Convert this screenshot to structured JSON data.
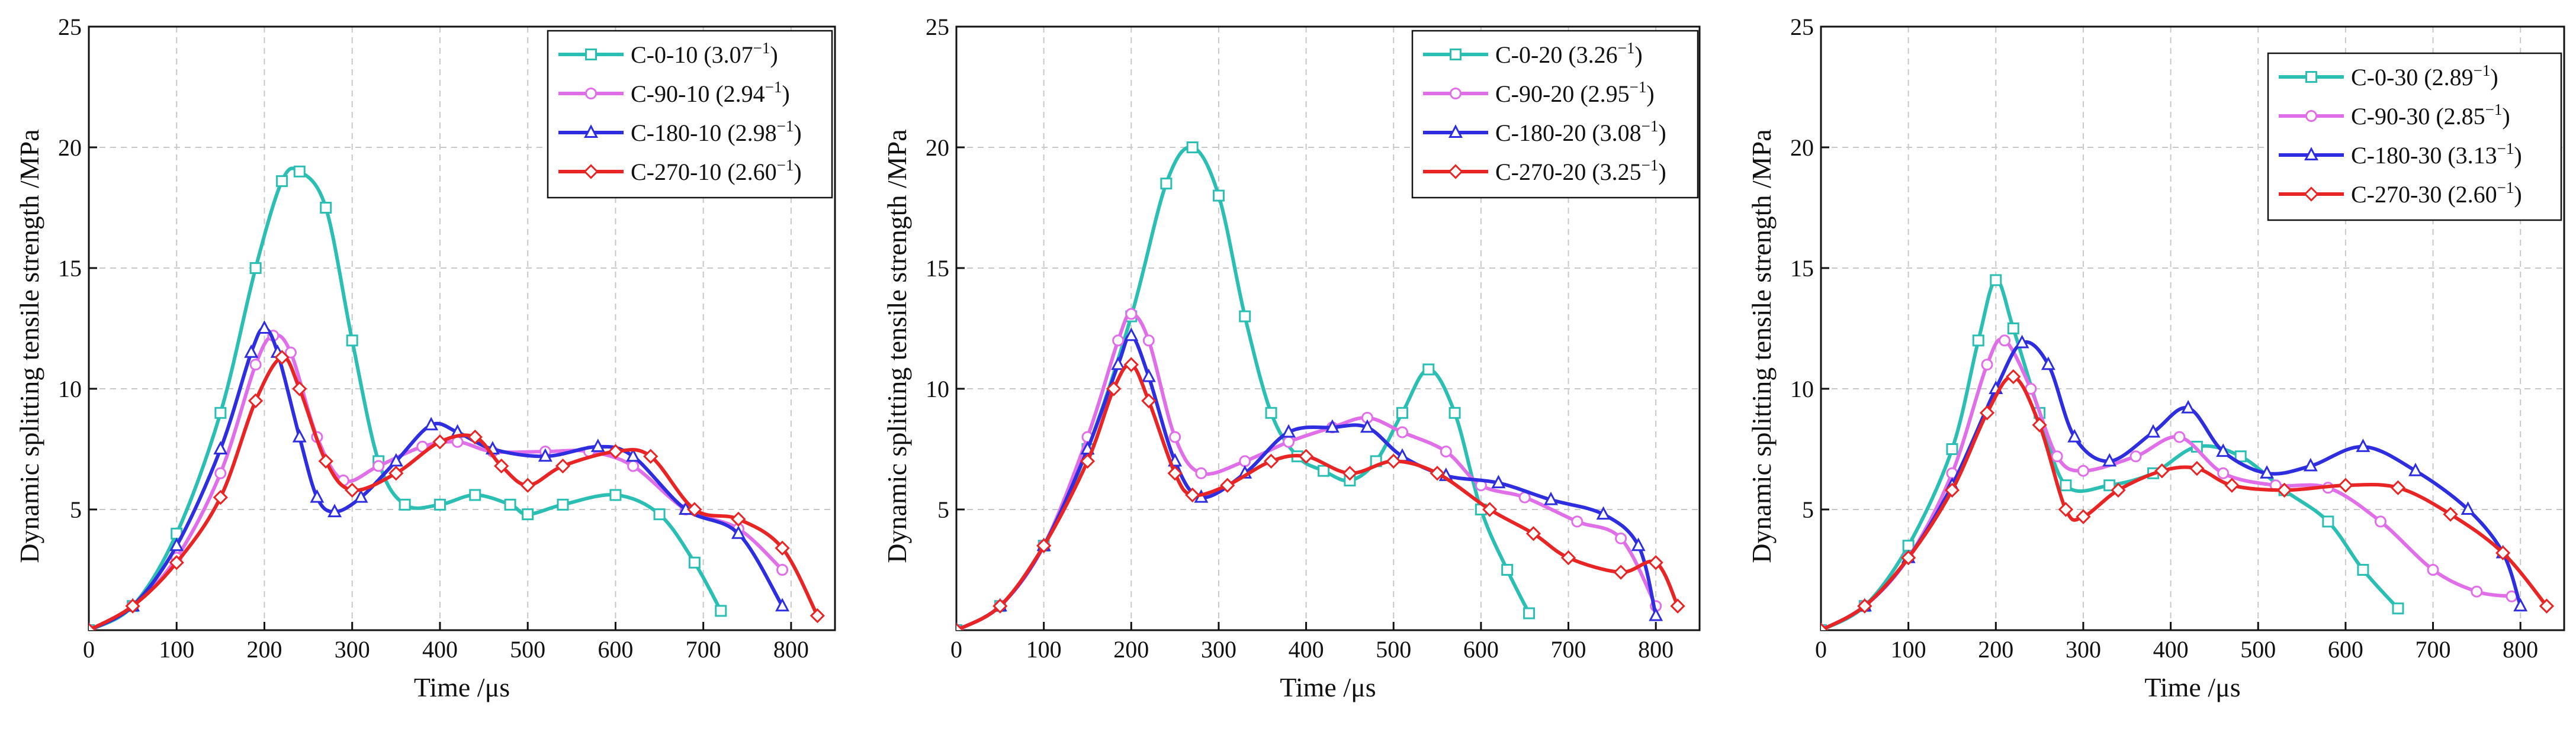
{
  "chart_data": [
    {
      "type": "line",
      "xlabel": "Time /μs",
      "ylabel": "Dynamic splitting tensile strength /MPa",
      "xlim": [
        0,
        850
      ],
      "ylim": [
        0,
        25
      ],
      "xticks": [
        0,
        100,
        200,
        300,
        400,
        500,
        600,
        700,
        800
      ],
      "yticks": [
        5,
        10,
        15,
        20,
        25
      ],
      "grid": true,
      "legend_position": "top-right",
      "series": [
        {
          "name": "C-0-10",
          "rate_base": "3.07",
          "exponent": "−1",
          "color": "#2bbfb3",
          "marker": "square",
          "points": [
            [
              0,
              0
            ],
            [
              50,
              1
            ],
            [
              100,
              4
            ],
            [
              150,
              9
            ],
            [
              190,
              15
            ],
            [
              220,
              18.6
            ],
            [
              240,
              19
            ],
            [
              270,
              17.5
            ],
            [
              300,
              12
            ],
            [
              330,
              7
            ],
            [
              360,
              5.2
            ],
            [
              400,
              5.2
            ],
            [
              440,
              5.6
            ],
            [
              480,
              5.2
            ],
            [
              500,
              4.8
            ],
            [
              540,
              5.2
            ],
            [
              600,
              5.6
            ],
            [
              650,
              4.8
            ],
            [
              690,
              2.8
            ],
            [
              720,
              0.8
            ]
          ]
        },
        {
          "name": "C-90-10",
          "rate_base": "2.94",
          "exponent": "−1",
          "color": "#e06ee8",
          "marker": "circle",
          "points": [
            [
              0,
              0
            ],
            [
              50,
              1
            ],
            [
              100,
              3
            ],
            [
              150,
              6.5
            ],
            [
              190,
              11
            ],
            [
              210,
              12.2
            ],
            [
              230,
              11.5
            ],
            [
              260,
              8
            ],
            [
              290,
              6.2
            ],
            [
              330,
              6.8
            ],
            [
              380,
              7.6
            ],
            [
              420,
              7.8
            ],
            [
              460,
              7.4
            ],
            [
              520,
              7.4
            ],
            [
              570,
              7.4
            ],
            [
              620,
              6.8
            ],
            [
              680,
              5
            ],
            [
              740,
              4.2
            ],
            [
              790,
              2.5
            ]
          ]
        },
        {
          "name": "C-180-10",
          "rate_base": "2.98",
          "exponent": "−1",
          "color": "#2e2ee0",
          "marker": "triangle",
          "points": [
            [
              0,
              0
            ],
            [
              50,
              1
            ],
            [
              100,
              3.5
            ],
            [
              150,
              7.5
            ],
            [
              185,
              11.5
            ],
            [
              200,
              12.5
            ],
            [
              215,
              11.5
            ],
            [
              240,
              8
            ],
            [
              260,
              5.5
            ],
            [
              280,
              4.9
            ],
            [
              310,
              5.5
            ],
            [
              350,
              7
            ],
            [
              390,
              8.5
            ],
            [
              420,
              8.2
            ],
            [
              460,
              7.5
            ],
            [
              520,
              7.2
            ],
            [
              580,
              7.6
            ],
            [
              620,
              7.2
            ],
            [
              680,
              5
            ],
            [
              740,
              4
            ],
            [
              790,
              1
            ]
          ]
        },
        {
          "name": "C-270-10",
          "rate_base": "2.60",
          "exponent": "−1",
          "color": "#e82424",
          "marker": "diamond",
          "points": [
            [
              0,
              0
            ],
            [
              50,
              1
            ],
            [
              100,
              2.8
            ],
            [
              150,
              5.5
            ],
            [
              190,
              9.5
            ],
            [
              220,
              11.3
            ],
            [
              240,
              10
            ],
            [
              270,
              7
            ],
            [
              300,
              5.8
            ],
            [
              350,
              6.5
            ],
            [
              400,
              7.8
            ],
            [
              440,
              8
            ],
            [
              470,
              6.8
            ],
            [
              500,
              6
            ],
            [
              540,
              6.8
            ],
            [
              600,
              7.4
            ],
            [
              640,
              7.2
            ],
            [
              690,
              5
            ],
            [
              740,
              4.6
            ],
            [
              790,
              3.4
            ],
            [
              830,
              0.6
            ]
          ]
        }
      ]
    },
    {
      "type": "line",
      "xlabel": "Time /μs",
      "ylabel": "Dynamic splitting tensile strength /MPa",
      "xlim": [
        0,
        850
      ],
      "ylim": [
        0,
        25
      ],
      "xticks": [
        0,
        100,
        200,
        300,
        400,
        500,
        600,
        700,
        800
      ],
      "yticks": [
        5,
        10,
        15,
        20,
        25
      ],
      "grid": true,
      "legend_position": "top-right",
      "series": [
        {
          "name": "C-0-20",
          "rate_base": "3.26",
          "exponent": "−1",
          "color": "#2bbfb3",
          "marker": "square",
          "points": [
            [
              0,
              0
            ],
            [
              50,
              1
            ],
            [
              100,
              3.5
            ],
            [
              150,
              7.5
            ],
            [
              200,
              13
            ],
            [
              240,
              18.5
            ],
            [
              270,
              20
            ],
            [
              300,
              18
            ],
            [
              330,
              13
            ],
            [
              360,
              9
            ],
            [
              390,
              7.2
            ],
            [
              420,
              6.6
            ],
            [
              450,
              6.2
            ],
            [
              480,
              7
            ],
            [
              510,
              9
            ],
            [
              540,
              10.8
            ],
            [
              570,
              9
            ],
            [
              600,
              5
            ],
            [
              630,
              2.5
            ],
            [
              655,
              0.7
            ]
          ]
        },
        {
          "name": "C-90-20",
          "rate_base": "2.95",
          "exponent": "−1",
          "color": "#e06ee8",
          "marker": "circle",
          "points": [
            [
              0,
              0
            ],
            [
              50,
              1
            ],
            [
              100,
              3.5
            ],
            [
              150,
              8
            ],
            [
              185,
              12
            ],
            [
              200,
              13.1
            ],
            [
              220,
              12
            ],
            [
              250,
              8
            ],
            [
              280,
              6.5
            ],
            [
              330,
              7
            ],
            [
              380,
              7.8
            ],
            [
              430,
              8.4
            ],
            [
              470,
              8.8
            ],
            [
              510,
              8.2
            ],
            [
              560,
              7.4
            ],
            [
              600,
              6
            ],
            [
              650,
              5.5
            ],
            [
              710,
              4.5
            ],
            [
              760,
              3.8
            ],
            [
              800,
              1
            ]
          ]
        },
        {
          "name": "C-180-20",
          "rate_base": "3.08",
          "exponent": "−1",
          "color": "#2e2ee0",
          "marker": "triangle",
          "points": [
            [
              0,
              0
            ],
            [
              50,
              1
            ],
            [
              100,
              3.5
            ],
            [
              150,
              7.5
            ],
            [
              185,
              11
            ],
            [
              200,
              12.2
            ],
            [
              220,
              10.5
            ],
            [
              250,
              7
            ],
            [
              280,
              5.5
            ],
            [
              330,
              6.5
            ],
            [
              380,
              8.2
            ],
            [
              430,
              8.4
            ],
            [
              470,
              8.4
            ],
            [
              510,
              7.2
            ],
            [
              560,
              6.4
            ],
            [
              620,
              6.1
            ],
            [
              680,
              5.4
            ],
            [
              740,
              4.8
            ],
            [
              780,
              3.5
            ],
            [
              800,
              0.6
            ]
          ]
        },
        {
          "name": "C-270-20",
          "rate_base": "3.25",
          "exponent": "−1",
          "color": "#e82424",
          "marker": "diamond",
          "points": [
            [
              0,
              0
            ],
            [
              50,
              1
            ],
            [
              100,
              3.5
            ],
            [
              150,
              7
            ],
            [
              180,
              10
            ],
            [
              200,
              11
            ],
            [
              220,
              9.5
            ],
            [
              250,
              6.5
            ],
            [
              270,
              5.6
            ],
            [
              310,
              6
            ],
            [
              360,
              7
            ],
            [
              400,
              7.2
            ],
            [
              450,
              6.5
            ],
            [
              500,
              7
            ],
            [
              550,
              6.5
            ],
            [
              610,
              5
            ],
            [
              660,
              4
            ],
            [
              700,
              3
            ],
            [
              760,
              2.4
            ],
            [
              800,
              2.8
            ],
            [
              825,
              1
            ]
          ]
        }
      ]
    },
    {
      "type": "line",
      "xlabel": "Time /μs",
      "ylabel": "Dynamic splitting tensile strength /MPa",
      "xlim": [
        0,
        850
      ],
      "ylim": [
        0,
        25
      ],
      "xticks": [
        0,
        100,
        200,
        300,
        400,
        500,
        600,
        700,
        800
      ],
      "yticks": [
        5,
        10,
        15,
        20,
        25
      ],
      "grid": true,
      "legend_position": "top-right",
      "series": [
        {
          "name": "C-0-30",
          "rate_base": "2.89",
          "exponent": "−1",
          "color": "#2bbfb3",
          "marker": "square",
          "points": [
            [
              0,
              0
            ],
            [
              50,
              1
            ],
            [
              100,
              3.5
            ],
            [
              150,
              7.5
            ],
            [
              180,
              12
            ],
            [
              200,
              14.5
            ],
            [
              220,
              12.5
            ],
            [
              250,
              9
            ],
            [
              280,
              6
            ],
            [
              330,
              6
            ],
            [
              380,
              6.5
            ],
            [
              430,
              7.6
            ],
            [
              480,
              7.2
            ],
            [
              530,
              5.8
            ],
            [
              580,
              4.5
            ],
            [
              620,
              2.5
            ],
            [
              660,
              0.9
            ]
          ]
        },
        {
          "name": "C-90-30",
          "rate_base": "2.85",
          "exponent": "−1",
          "color": "#e06ee8",
          "marker": "circle",
          "points": [
            [
              0,
              0
            ],
            [
              50,
              1
            ],
            [
              100,
              3
            ],
            [
              150,
              6.5
            ],
            [
              190,
              11
            ],
            [
              210,
              12
            ],
            [
              240,
              10
            ],
            [
              270,
              7.2
            ],
            [
              300,
              6.6
            ],
            [
              360,
              7.2
            ],
            [
              410,
              8
            ],
            [
              460,
              6.5
            ],
            [
              520,
              6
            ],
            [
              580,
              5.9
            ],
            [
              640,
              4.5
            ],
            [
              700,
              2.5
            ],
            [
              750,
              1.6
            ],
            [
              790,
              1.4
            ]
          ]
        },
        {
          "name": "C-180-30",
          "rate_base": "3.13",
          "exponent": "−1",
          "color": "#2e2ee0",
          "marker": "triangle",
          "points": [
            [
              0,
              0
            ],
            [
              50,
              1
            ],
            [
              100,
              3
            ],
            [
              150,
              6
            ],
            [
              200,
              10
            ],
            [
              230,
              11.9
            ],
            [
              260,
              11
            ],
            [
              290,
              8
            ],
            [
              330,
              7
            ],
            [
              380,
              8.2
            ],
            [
              420,
              9.2
            ],
            [
              460,
              7.4
            ],
            [
              510,
              6.5
            ],
            [
              560,
              6.8
            ],
            [
              620,
              7.6
            ],
            [
              680,
              6.6
            ],
            [
              740,
              5
            ],
            [
              780,
              3.2
            ],
            [
              800,
              1
            ]
          ]
        },
        {
          "name": "C-270-30",
          "rate_base": "2.60",
          "exponent": "−1",
          "color": "#e82424",
          "marker": "diamond",
          "points": [
            [
              0,
              0
            ],
            [
              50,
              1
            ],
            [
              100,
              3
            ],
            [
              150,
              5.8
            ],
            [
              190,
              9
            ],
            [
              220,
              10.5
            ],
            [
              250,
              8.5
            ],
            [
              280,
              5
            ],
            [
              300,
              4.7
            ],
            [
              340,
              5.8
            ],
            [
              390,
              6.6
            ],
            [
              430,
              6.7
            ],
            [
              470,
              6
            ],
            [
              530,
              5.8
            ],
            [
              600,
              6
            ],
            [
              660,
              5.9
            ],
            [
              720,
              4.8
            ],
            [
              780,
              3.2
            ],
            [
              830,
              1
            ]
          ]
        }
      ]
    }
  ]
}
